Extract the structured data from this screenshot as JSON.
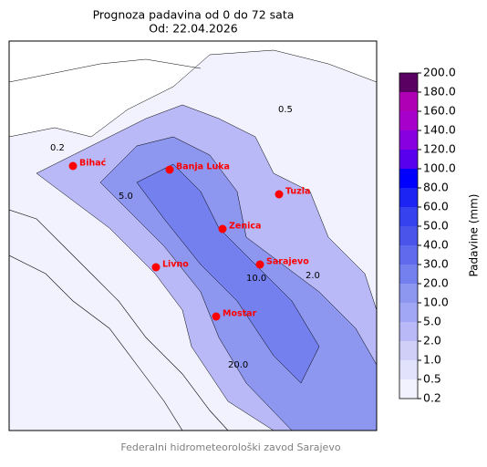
{
  "header": {
    "title": "Prognoza padavina od 0 do 72 sata",
    "subtitle": "Od: 22.04.2026"
  },
  "map": {
    "cities": [
      "Bihać",
      "Banja Luka",
      "Tuzla",
      "Zenica",
      "Sarajevo",
      "Livno",
      "Mostar"
    ],
    "contour_labels": [
      "0.2",
      "0.5",
      "5.0",
      "10.0",
      "2.0",
      "20.0"
    ]
  },
  "colorbar": {
    "label": "Padavine (mm)",
    "ticks": [
      {
        "value": 0.2,
        "label": "0.2"
      },
      {
        "value": 0.5,
        "label": "0.5"
      },
      {
        "value": 1,
        "label": "1.0"
      },
      {
        "value": 2,
        "label": "2.0"
      },
      {
        "value": 5,
        "label": "5.0"
      },
      {
        "value": 10,
        "label": "10.0"
      },
      {
        "value": 20,
        "label": "20.0"
      },
      {
        "value": 30,
        "label": "30.0"
      },
      {
        "value": 40,
        "label": "40.0"
      },
      {
        "value": 50,
        "label": "50.0"
      },
      {
        "value": 60,
        "label": "60.0"
      },
      {
        "value": 80,
        "label": "80.0"
      },
      {
        "value": 100,
        "label": "100.0"
      },
      {
        "value": 120,
        "label": "120.0"
      },
      {
        "value": 140,
        "label": "140.0"
      },
      {
        "value": 160,
        "label": "160.0"
      },
      {
        "value": 180,
        "label": "180.0"
      },
      {
        "value": 200,
        "label": "200.0"
      }
    ],
    "colors": [
      "#f2f2ff",
      "#e2e2fc",
      "#cfcff8",
      "#b8b9f6",
      "#a1a7f4",
      "#8e97f0",
      "#7380ee",
      "#5f6aec",
      "#4a54ea",
      "#3642ee",
      "#1c24f3",
      "#0000ff",
      "#5800ee",
      "#8800e0",
      "#a600ca",
      "#b000b6",
      "#5a0062"
    ]
  },
  "footer": "Federalni hidrometeorološki zavod Sarajevo"
}
